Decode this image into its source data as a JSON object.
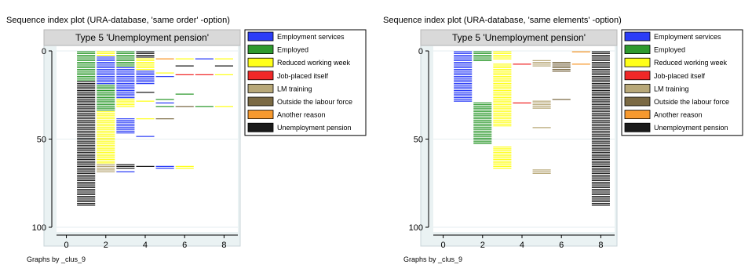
{
  "chart_data": [
    {
      "type": "heatmap",
      "title": "Sequence index plot (URA-database, 'same order' -option)",
      "subtitle": "Type 5 'Unemployment pension'",
      "footer": "Graphs by _clus_9",
      "x_ticks": [
        0,
        2,
        4,
        6,
        8
      ],
      "y_ticks": [
        0,
        50,
        100
      ],
      "xlim": [
        -0.5,
        8.7
      ],
      "ylim": [
        0,
        100
      ],
      "y_reversed": true,
      "grid": true,
      "legend_position": "right",
      "segments": [
        {
          "x": [
            0.5,
            1.5
          ],
          "y": [
            0,
            17
          ],
          "state": "Employed"
        },
        {
          "x": [
            0.5,
            1.5
          ],
          "y": [
            17,
            88
          ],
          "state": "Unemployment pension"
        },
        {
          "x": [
            1.5,
            2.5
          ],
          "y": [
            0,
            3
          ],
          "state": "Reduced working week"
        },
        {
          "x": [
            1.5,
            2.5
          ],
          "y": [
            3,
            19
          ],
          "state": "Employment services"
        },
        {
          "x": [
            1.5,
            2.5
          ],
          "y": [
            19,
            34
          ],
          "state": "Employed"
        },
        {
          "x": [
            1.5,
            2.5
          ],
          "y": [
            34,
            64
          ],
          "state": "Reduced working week"
        },
        {
          "x": [
            1.5,
            2.5
          ],
          "y": [
            64,
            69
          ],
          "state": "LM training"
        },
        {
          "x": [
            2.5,
            3.5
          ],
          "y": [
            0,
            9
          ],
          "state": "Employed"
        },
        {
          "x": [
            2.5,
            3.5
          ],
          "y": [
            9,
            27
          ],
          "state": "Employment services"
        },
        {
          "x": [
            2.5,
            3.5
          ],
          "y": [
            27,
            32
          ],
          "state": "Reduced working week"
        },
        {
          "x": [
            2.5,
            3.5
          ],
          "y": [
            38,
            47
          ],
          "state": "Employment services"
        },
        {
          "x": [
            2.5,
            3.5
          ],
          "y": [
            64,
            67
          ],
          "state": "Unemployment pension"
        },
        {
          "x": [
            2.5,
            3.5
          ],
          "y": [
            68,
            69
          ],
          "state": "Employment services"
        },
        {
          "x": [
            3.5,
            4.5
          ],
          "y": [
            0,
            4
          ],
          "state": "Unemployment pension"
        },
        {
          "x": [
            3.5,
            4.5
          ],
          "y": [
            4,
            11
          ],
          "state": "Reduced working week"
        },
        {
          "x": [
            3.5,
            4.5
          ],
          "y": [
            11,
            19
          ],
          "state": "Employment services"
        },
        {
          "x": [
            3.5,
            4.5
          ],
          "y": [
            23,
            24
          ],
          "state": "Unemployment pension"
        },
        {
          "x": [
            3.5,
            4.5
          ],
          "y": [
            28,
            29
          ],
          "state": "Reduced working week"
        },
        {
          "x": [
            3.5,
            4.5
          ],
          "y": [
            38,
            39
          ],
          "state": "Reduced working week"
        },
        {
          "x": [
            3.5,
            4.5
          ],
          "y": [
            48,
            49
          ],
          "state": "Employment services"
        },
        {
          "x": [
            3.5,
            4.5
          ],
          "y": [
            65,
            66
          ],
          "state": "Unemployment pension"
        },
        {
          "x": [
            4.5,
            5.5
          ],
          "y": [
            4,
            5
          ],
          "state": "Another reason"
        },
        {
          "x": [
            4.5,
            5.5
          ],
          "y": [
            12,
            13
          ],
          "state": "Reduced working week"
        },
        {
          "x": [
            4.5,
            5.5
          ],
          "y": [
            14,
            15
          ],
          "state": "Employment services"
        },
        {
          "x": [
            4.5,
            5.5
          ],
          "y": [
            27,
            28
          ],
          "state": "Employed"
        },
        {
          "x": [
            4.5,
            5.5
          ],
          "y": [
            29,
            30
          ],
          "state": "Employment services"
        },
        {
          "x": [
            4.5,
            5.5
          ],
          "y": [
            31,
            32
          ],
          "state": "Employed"
        },
        {
          "x": [
            4.5,
            5.5
          ],
          "y": [
            38,
            39
          ],
          "state": "Outside the labour force"
        },
        {
          "x": [
            4.5,
            5.5
          ],
          "y": [
            65,
            67
          ],
          "state": "Employment services"
        },
        {
          "x": [
            5.5,
            6.5
          ],
          "y": [
            4,
            5
          ],
          "state": "Reduced working week"
        },
        {
          "x": [
            5.5,
            6.5
          ],
          "y": [
            8,
            9
          ],
          "state": "Unemployment pension"
        },
        {
          "x": [
            5.5,
            6.5
          ],
          "y": [
            13,
            14
          ],
          "state": "Job-placed itself"
        },
        {
          "x": [
            5.5,
            6.5
          ],
          "y": [
            24,
            25
          ],
          "state": "Employed"
        },
        {
          "x": [
            5.5,
            6.5
          ],
          "y": [
            31,
            32
          ],
          "state": "Outside the labour force"
        },
        {
          "x": [
            5.5,
            6.5
          ],
          "y": [
            65,
            67
          ],
          "state": "Reduced working week"
        },
        {
          "x": [
            6.5,
            7.5
          ],
          "y": [
            4,
            5
          ],
          "state": "Employment services"
        },
        {
          "x": [
            6.5,
            7.5
          ],
          "y": [
            13,
            14
          ],
          "state": "Job-placed itself"
        },
        {
          "x": [
            6.5,
            7.5
          ],
          "y": [
            31,
            32
          ],
          "state": "Employed"
        },
        {
          "x": [
            7.5,
            8.5
          ],
          "y": [
            4,
            5
          ],
          "state": "Reduced working week"
        },
        {
          "x": [
            7.5,
            8.5
          ],
          "y": [
            8,
            9
          ],
          "state": "Unemployment pension"
        },
        {
          "x": [
            7.5,
            8.5
          ],
          "y": [
            13,
            14
          ],
          "state": "Reduced working week"
        },
        {
          "x": [
            7.5,
            8.5
          ],
          "y": [
            31,
            32
          ],
          "state": "Reduced working week"
        }
      ]
    },
    {
      "type": "heatmap",
      "title": "Sequence index plot (URA-database, 'same elements' -option)",
      "subtitle": "Type 5 'Unemployment pension'",
      "footer": "Graphs by _clus_9",
      "x_ticks": [
        0,
        2,
        4,
        6,
        8
      ],
      "y_ticks": [
        0,
        50,
        100
      ],
      "xlim": [
        -0.5,
        8.7
      ],
      "ylim": [
        0,
        100
      ],
      "y_reversed": true,
      "grid": true,
      "legend_position": "right",
      "segments": [
        {
          "x": [
            0.5,
            1.5
          ],
          "y": [
            0,
            29
          ],
          "state": "Employment services"
        },
        {
          "x": [
            1.5,
            2.5
          ],
          "y": [
            0,
            6
          ],
          "state": "Employed"
        },
        {
          "x": [
            1.5,
            2.5
          ],
          "y": [
            29,
            53
          ],
          "state": "Employed"
        },
        {
          "x": [
            2.5,
            3.5
          ],
          "y": [
            0,
            5
          ],
          "state": "Reduced working week"
        },
        {
          "x": [
            2.5,
            3.5
          ],
          "y": [
            7,
            43
          ],
          "state": "Reduced working week"
        },
        {
          "x": [
            2.5,
            3.5
          ],
          "y": [
            54,
            67
          ],
          "state": "Reduced working week"
        },
        {
          "x": [
            3.5,
            4.5
          ],
          "y": [
            7,
            8
          ],
          "state": "Job-placed itself"
        },
        {
          "x": [
            3.5,
            4.5
          ],
          "y": [
            29,
            30
          ],
          "state": "Job-placed itself"
        },
        {
          "x": [
            4.5,
            5.5
          ],
          "y": [
            5,
            9
          ],
          "state": "LM training"
        },
        {
          "x": [
            4.5,
            5.5
          ],
          "y": [
            28,
            33
          ],
          "state": "LM training"
        },
        {
          "x": [
            4.5,
            5.5
          ],
          "y": [
            43,
            44
          ],
          "state": "LM training"
        },
        {
          "x": [
            4.5,
            5.5
          ],
          "y": [
            67,
            70
          ],
          "state": "LM training"
        },
        {
          "x": [
            5.5,
            6.5
          ],
          "y": [
            6,
            12
          ],
          "state": "Outside the labour force"
        },
        {
          "x": [
            5.5,
            6.5
          ],
          "y": [
            27,
            28
          ],
          "state": "Outside the labour force"
        },
        {
          "x": [
            6.5,
            7.5
          ],
          "y": [
            0,
            1
          ],
          "state": "Another reason"
        },
        {
          "x": [
            6.5,
            7.5
          ],
          "y": [
            7,
            8
          ],
          "state": "Another reason"
        },
        {
          "x": [
            7.5,
            8.5
          ],
          "y": [
            0,
            88
          ],
          "state": "Unemployment pension"
        }
      ]
    }
  ],
  "legend": [
    {
      "label": "Employment services",
      "color": "#2b3df7"
    },
    {
      "label": "Employed",
      "color": "#2e9a2e"
    },
    {
      "label": "Reduced working week",
      "color": "#ffff1a"
    },
    {
      "label": "Job-placed itself",
      "color": "#f02828"
    },
    {
      "label": "LM training",
      "color": "#b8a878"
    },
    {
      "label": "Outside the labour force",
      "color": "#7b6a44"
    },
    {
      "label": "Another reason",
      "color": "#f7992e"
    },
    {
      "label": "Unemployment pension",
      "color": "#1a1a1a"
    }
  ]
}
